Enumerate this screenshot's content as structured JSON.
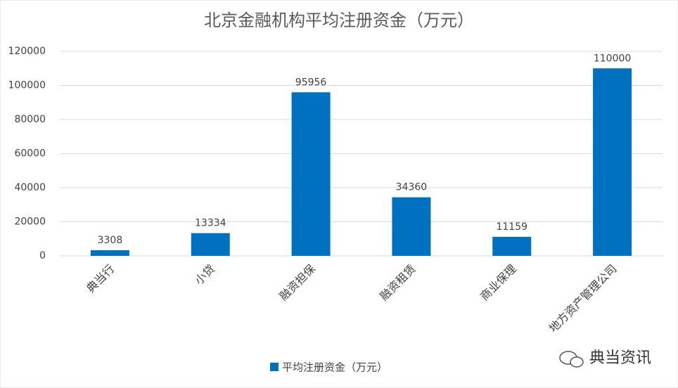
{
  "chart_data": {
    "type": "bar",
    "title": "北京金融机构平均注册资金（万元）",
    "categories": [
      "典当行",
      "小贷",
      "融资担保",
      "融资租赁",
      "商业保理",
      "地方资产管理公司"
    ],
    "series": [
      {
        "name": "平均注册资金（万元）",
        "color": "#0070c0",
        "values": [
          3308,
          13334,
          95956,
          34360,
          11159,
          110000
        ]
      }
    ],
    "ylim": [
      0,
      120000
    ],
    "yticks": [
      0,
      20000,
      40000,
      60000,
      80000,
      100000,
      120000
    ],
    "grid": true,
    "legend": "bottom",
    "watermark": "典当资讯"
  }
}
